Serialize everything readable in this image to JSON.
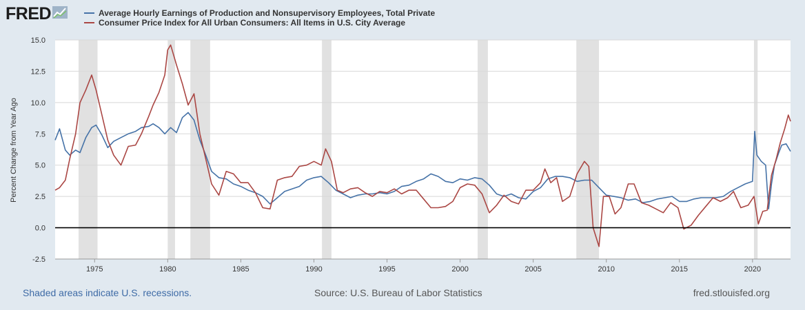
{
  "header": {
    "logo_text": "FRED",
    "logo_icon": "trend-line-icon"
  },
  "colors": {
    "series1": "#4572a7",
    "series2": "#aa4643",
    "recession_shade": "#e1e1e1",
    "background": "#e1e9f0",
    "footer_link": "#3e6ba6"
  },
  "footer": {
    "recessions_note": "Shaded areas indicate U.S. recessions.",
    "source": "Source: U.S. Bureau of Labor Statistics",
    "site": "fred.stlouisfed.org"
  },
  "chart_data": {
    "type": "line",
    "title": "",
    "xlabel": "",
    "ylabel": "Percent Change from Year Ago",
    "xlim": [
      1972.3,
      2022.6
    ],
    "ylim": [
      -2.5,
      15.0
    ],
    "yticks": [
      -2.5,
      0.0,
      2.5,
      5.0,
      7.5,
      10.0,
      12.5,
      15.0
    ],
    "ytick_labels": [
      "-2.5",
      "0.0",
      "2.5",
      "5.0",
      "7.5",
      "10.0",
      "12.5",
      "15.0"
    ],
    "xticks": [
      1975,
      1980,
      1985,
      1990,
      1995,
      2000,
      2005,
      2010,
      2015,
      2020
    ],
    "xtick_labels": [
      "1975",
      "1980",
      "1985",
      "1990",
      "1995",
      "2000",
      "2005",
      "2010",
      "2015",
      "2020"
    ],
    "grid": "horizontal",
    "zero_line": true,
    "legend_position": "top-left",
    "recessions": [
      [
        1973.9,
        1975.2
      ],
      [
        1980.0,
        1980.5
      ],
      [
        1981.55,
        1982.9
      ],
      [
        1990.55,
        1991.2
      ],
      [
        2001.2,
        2001.9
      ],
      [
        2007.95,
        2009.5
      ],
      [
        2020.1,
        2020.35
      ]
    ],
    "series": [
      {
        "name": "Average Hourly Earnings of Production and Nonsupervisory Employees, Total Private",
        "x": [
          1972.3,
          1972.6,
          1973.0,
          1973.3,
          1973.7,
          1974.0,
          1974.4,
          1974.8,
          1975.1,
          1975.5,
          1975.9,
          1976.3,
          1976.8,
          1977.3,
          1977.8,
          1978.2,
          1978.7,
          1979.0,
          1979.4,
          1979.8,
          1980.2,
          1980.6,
          1981.0,
          1981.4,
          1981.8,
          1982.2,
          1982.6,
          1983.0,
          1983.5,
          1984.0,
          1984.5,
          1985.0,
          1985.5,
          1986.0,
          1986.5,
          1987.0,
          1987.5,
          1988.0,
          1988.5,
          1989.0,
          1989.5,
          1990.0,
          1990.5,
          1991.0,
          1991.5,
          1992.0,
          1992.5,
          1993.0,
          1993.5,
          1994.0,
          1994.5,
          1995.0,
          1995.5,
          1996.0,
          1996.5,
          1997.0,
          1997.5,
          1998.0,
          1998.5,
          1999.0,
          1999.5,
          2000.0,
          2000.5,
          2001.0,
          2001.5,
          2002.0,
          2002.5,
          2003.0,
          2003.5,
          2004.0,
          2004.5,
          2005.0,
          2005.5,
          2006.0,
          2006.5,
          2007.0,
          2007.5,
          2008.0,
          2008.5,
          2009.0,
          2009.5,
          2010.0,
          2010.5,
          2011.0,
          2011.5,
          2012.0,
          2012.5,
          2013.0,
          2013.5,
          2014.0,
          2014.5,
          2015.0,
          2015.5,
          2016.0,
          2016.5,
          2017.0,
          2017.5,
          2018.0,
          2018.5,
          2019.0,
          2019.5,
          2020.0,
          2020.15,
          2020.3,
          2020.6,
          2020.9,
          2021.1,
          2021.3,
          2021.5,
          2021.8,
          2022.0,
          2022.3,
          2022.6
        ],
        "values": [
          7.0,
          7.9,
          6.2,
          5.8,
          6.2,
          6.0,
          7.2,
          8.0,
          8.2,
          7.4,
          6.4,
          6.9,
          7.2,
          7.5,
          7.7,
          8.0,
          8.1,
          8.3,
          8.0,
          7.5,
          8.0,
          7.6,
          8.8,
          9.2,
          8.6,
          7.0,
          5.8,
          4.5,
          4.0,
          3.9,
          3.5,
          3.3,
          3.0,
          2.8,
          2.5,
          1.9,
          2.4,
          2.9,
          3.1,
          3.3,
          3.8,
          4.0,
          4.1,
          3.6,
          3.0,
          2.7,
          2.4,
          2.6,
          2.7,
          2.7,
          2.8,
          2.7,
          2.9,
          3.3,
          3.4,
          3.7,
          3.9,
          4.3,
          4.1,
          3.7,
          3.6,
          3.9,
          3.8,
          4.0,
          3.9,
          3.4,
          2.7,
          2.5,
          2.7,
          2.4,
          2.3,
          2.9,
          3.2,
          3.9,
          4.1,
          4.1,
          4.0,
          3.7,
          3.8,
          3.8,
          3.2,
          2.6,
          2.5,
          2.4,
          2.2,
          2.3,
          2.0,
          2.1,
          2.3,
          2.4,
          2.5,
          2.1,
          2.1,
          2.3,
          2.4,
          2.4,
          2.4,
          2.5,
          2.9,
          3.2,
          3.5,
          3.7,
          7.7,
          5.8,
          5.3,
          5.0,
          1.5,
          3.5,
          5.0,
          6.0,
          6.6,
          6.7,
          6.1
        ]
      },
      {
        "name": "Consumer Price Index for All Urban Consumers: All Items in U.S. City Average",
        "x": [
          1972.3,
          1972.6,
          1973.0,
          1973.3,
          1973.7,
          1974.0,
          1974.4,
          1974.8,
          1975.1,
          1975.5,
          1975.9,
          1976.3,
          1976.8,
          1977.3,
          1977.8,
          1978.2,
          1978.7,
          1979.0,
          1979.4,
          1979.8,
          1980.0,
          1980.2,
          1980.6,
          1981.0,
          1981.4,
          1981.8,
          1982.2,
          1982.6,
          1983.0,
          1983.5,
          1984.0,
          1984.5,
          1985.0,
          1985.5,
          1986.0,
          1986.5,
          1987.0,
          1987.5,
          1988.0,
          1988.5,
          1989.0,
          1989.5,
          1990.0,
          1990.5,
          1990.8,
          1991.2,
          1991.6,
          1992.0,
          1992.5,
          1993.0,
          1993.5,
          1994.0,
          1994.5,
          1995.0,
          1995.5,
          1996.0,
          1996.5,
          1997.0,
          1997.5,
          1998.0,
          1998.5,
          1999.0,
          1999.5,
          2000.0,
          2000.5,
          2001.0,
          2001.5,
          2002.0,
          2002.5,
          2003.0,
          2003.5,
          2004.0,
          2004.5,
          2005.0,
          2005.5,
          2005.8,
          2006.2,
          2006.6,
          2007.0,
          2007.5,
          2008.0,
          2008.5,
          2008.8,
          2009.1,
          2009.5,
          2009.8,
          2010.2,
          2010.6,
          2011.0,
          2011.5,
          2011.9,
          2012.4,
          2012.9,
          2013.4,
          2013.9,
          2014.4,
          2014.9,
          2015.3,
          2015.8,
          2016.3,
          2016.8,
          2017.3,
          2017.8,
          2018.3,
          2018.7,
          2019.2,
          2019.7,
          2020.1,
          2020.4,
          2020.7,
          2021.0,
          2021.3,
          2021.6,
          2021.9,
          2022.2,
          2022.45,
          2022.6
        ],
        "values": [
          3.0,
          3.2,
          3.8,
          5.5,
          7.5,
          10.0,
          11.0,
          12.2,
          11.0,
          9.0,
          7.0,
          5.8,
          5.0,
          6.5,
          6.6,
          7.5,
          8.9,
          9.8,
          10.8,
          12.2,
          14.2,
          14.6,
          13.0,
          11.5,
          9.8,
          10.7,
          7.5,
          5.5,
          3.5,
          2.6,
          4.5,
          4.3,
          3.6,
          3.6,
          2.8,
          1.6,
          1.5,
          3.8,
          4.0,
          4.1,
          4.9,
          5.0,
          5.3,
          5.0,
          6.3,
          5.3,
          3.0,
          2.8,
          3.1,
          3.2,
          2.8,
          2.5,
          2.9,
          2.8,
          3.1,
          2.7,
          3.0,
          3.0,
          2.3,
          1.6,
          1.6,
          1.7,
          2.1,
          3.2,
          3.5,
          3.4,
          2.7,
          1.2,
          1.8,
          2.6,
          2.1,
          1.9,
          3.0,
          3.0,
          3.6,
          4.7,
          3.6,
          4.0,
          2.1,
          2.5,
          4.3,
          5.3,
          4.9,
          0.0,
          -1.5,
          2.5,
          2.5,
          1.1,
          1.6,
          3.5,
          3.5,
          2.0,
          1.8,
          1.5,
          1.2,
          2.0,
          1.6,
          -0.1,
          0.2,
          1.0,
          1.7,
          2.4,
          2.1,
          2.4,
          2.9,
          1.6,
          1.8,
          2.5,
          0.3,
          1.3,
          1.4,
          4.2,
          5.4,
          6.8,
          7.9,
          9.0,
          8.5
        ]
      }
    ]
  }
}
